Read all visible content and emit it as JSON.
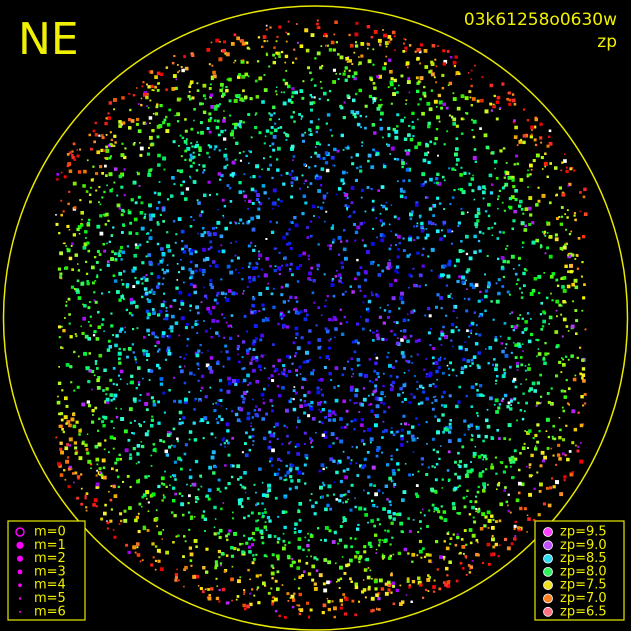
{
  "corner_label": "NE",
  "title": "03k61258o0630w",
  "subtitle": "zp",
  "magnitude_legend": {
    "color": "#ff00ff",
    "items": [
      "m=0",
      "m=1",
      "m=2",
      "m=3",
      "m=4",
      "m=5",
      "m=6"
    ]
  },
  "zp_legend": [
    {
      "label": "zp=9.5",
      "color": "#ff40ff"
    },
    {
      "label": "zp=9.0",
      "color": "#c050ff"
    },
    {
      "label": "zp=8.5",
      "color": "#30d8f0"
    },
    {
      "label": "zp=8.0",
      "color": "#30f060"
    },
    {
      "label": "zp=7.5",
      "color": "#f0e020"
    },
    {
      "label": "zp=7.0",
      "color": "#ff8020"
    },
    {
      "label": "zp=6.5",
      "color": "#ff7080"
    }
  ]
}
